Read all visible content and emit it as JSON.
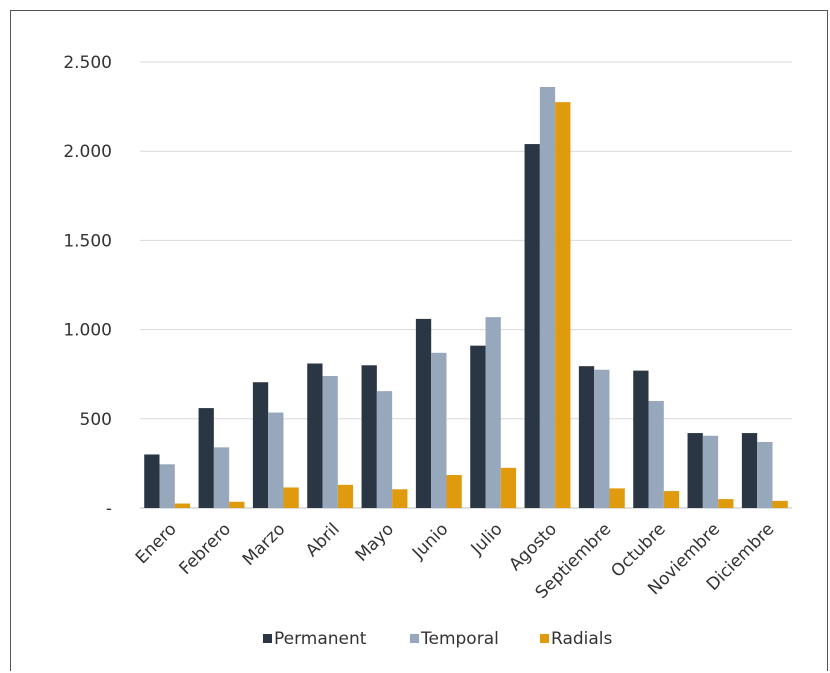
{
  "chart_data": {
    "type": "bar",
    "title": "",
    "xlabel": "",
    "ylabel": "",
    "ylim": [
      0,
      2500
    ],
    "yticks": [
      0,
      500,
      1000,
      1500,
      2000,
      2500
    ],
    "ytick_labels": [
      "-",
      "500",
      "1.000",
      "1.500",
      "2.000",
      "2.500"
    ],
    "grid": true,
    "legend_position": "bottom",
    "categories": [
      "Enero",
      "Febrero",
      "Marzo",
      "Abril",
      "Mayo",
      "Junio",
      "Julio",
      "Agosto",
      "Septiembre",
      "Octubre",
      "Noviembre",
      "Diciembre"
    ],
    "series": [
      {
        "name": "Permanent",
        "color": "#2b3644",
        "values": [
          300,
          560,
          705,
          810,
          800,
          1060,
          910,
          2040,
          795,
          770,
          420,
          420
        ]
      },
      {
        "name": "Temporal",
        "color": "#98a8bc",
        "values": [
          245,
          340,
          535,
          740,
          655,
          870,
          1070,
          2360,
          775,
          600,
          405,
          370
        ]
      },
      {
        "name": "Radials",
        "color": "#df9a0e",
        "values": [
          25,
          35,
          115,
          130,
          105,
          185,
          225,
          2275,
          110,
          95,
          50,
          40
        ]
      }
    ]
  }
}
